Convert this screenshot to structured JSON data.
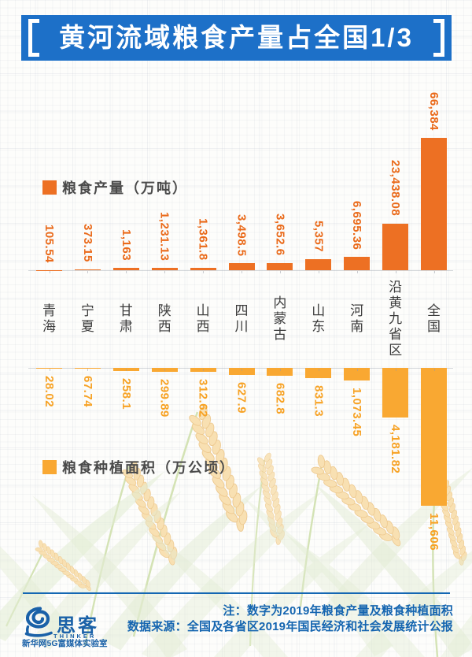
{
  "page": {
    "background_color": "#fdfdfb",
    "grid_color": "#dfe2e8"
  },
  "title": {
    "text": "黄河流域粮食产量占全国1/3",
    "bar_color": "#1d70c8",
    "text_color": "#ffffff"
  },
  "chart_data": {
    "type": "bar",
    "orientation": "mirrored-vertical",
    "categories": [
      "青海",
      "宁夏",
      "甘肃",
      "陕西",
      "山西",
      "四川",
      "内蒙古",
      "山东",
      "河南",
      "沿黄九省区",
      "全国"
    ],
    "series": [
      {
        "name": "粮食产量（万吨）",
        "direction": "up",
        "color": "#ed7023",
        "label_color": "#ea6a1a",
        "values": [
          105.54,
          373.15,
          1163,
          1231.13,
          1361.8,
          3498.5,
          3652.6,
          5357,
          6695.36,
          23438.08,
          66384
        ],
        "labels": [
          "105.54",
          "373.15",
          "1,163",
          "1,231.13",
          "1,361.8",
          "3,498.5",
          "3,652.6",
          "5,357",
          "6,695.36",
          "23,438.08",
          "66,384"
        ]
      },
      {
        "name": "粮食种植面积（万公顷）",
        "direction": "down",
        "color": "#f9a832",
        "label_color": "#f7a224",
        "values": [
          28.02,
          67.74,
          258.1,
          299.89,
          312.62,
          627.9,
          682.8,
          831.3,
          1073.45,
          4181.82,
          11606
        ],
        "labels": [
          "28.02",
          "67.74",
          "258.1",
          "299.89",
          "312.62",
          "627.9",
          "682.8",
          "831.3",
          "1,073.45",
          "4,181.82",
          "11,606"
        ]
      }
    ],
    "value_unit_note": "数字为2019年粮食产量及粮食种植面积",
    "gridlines": true,
    "legend_position": "left"
  },
  "legends": [
    {
      "label": "粮食产量（万吨）",
      "color": "#ed7023"
    },
    {
      "label": "粮食种植面积（万公顷）",
      "color": "#f9a832"
    }
  ],
  "footer": {
    "note": "注：数字为2019年粮食产量及粮食种植面积",
    "source": "数据来源：全国及各省区2019年国民经济和社会发展统计公报",
    "text_color": "#1565b0",
    "divider_color": "#1467b3"
  },
  "logo": {
    "brand": "思客",
    "subbrand": "THINKER",
    "org": "新华网5G富媒体实验室",
    "color": "#1a61a8"
  },
  "decorations": {
    "wheat_grain_fill": "#f8e0b2",
    "wheat_grain_stroke": "#edc88e",
    "stem_color": "#cddfa8",
    "leaf_color": "#e2ecd3"
  }
}
